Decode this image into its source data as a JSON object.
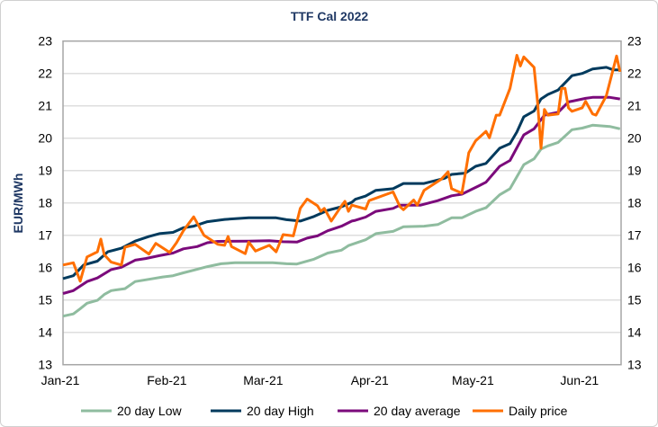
{
  "chart_data": {
    "type": "line",
    "title": "TTF Cal 2022",
    "ylabel": "EUR/MWh",
    "xlabel": "",
    "ylim": [
      13,
      23
    ],
    "yticks": [
      13,
      14,
      15,
      16,
      17,
      18,
      19,
      20,
      21,
      22,
      23
    ],
    "secondary_yticks": [
      13,
      14,
      15,
      16,
      17,
      18,
      19,
      20,
      21,
      22,
      23
    ],
    "xticks": [
      {
        "date": "2021-01-01",
        "label": "Jan-21"
      },
      {
        "date": "2021-02-01",
        "label": "Feb-21"
      },
      {
        "date": "2021-03-01",
        "label": "Mar-21"
      },
      {
        "date": "2021-04-01",
        "label": "Apr-21"
      },
      {
        "date": "2021-05-01",
        "label": "May-21"
      },
      {
        "date": "2021-06-01",
        "label": "Jun-21"
      }
    ],
    "grid": true,
    "legend_position": "bottom",
    "series": [
      {
        "name": "20 day Low",
        "color": "#8fbc9f",
        "points": [
          [
            "2021-01-01",
            14.5
          ],
          [
            "2021-01-04",
            14.57
          ],
          [
            "2021-01-06",
            14.73
          ],
          [
            "2021-01-08",
            14.9
          ],
          [
            "2021-01-11",
            14.99
          ],
          [
            "2021-01-13",
            15.17
          ],
          [
            "2021-01-15",
            15.29
          ],
          [
            "2021-01-19",
            15.35
          ],
          [
            "2021-01-22",
            15.57
          ],
          [
            "2021-01-26",
            15.64
          ],
          [
            "2021-01-30",
            15.71
          ],
          [
            "2021-02-02",
            15.75
          ],
          [
            "2021-02-05",
            15.84
          ],
          [
            "2021-02-08",
            15.92
          ],
          [
            "2021-02-12",
            16.03
          ],
          [
            "2021-02-16",
            16.12
          ],
          [
            "2021-02-20",
            16.15
          ],
          [
            "2021-03-03",
            16.15
          ],
          [
            "2021-03-07",
            16.12
          ],
          [
            "2021-03-10",
            16.11
          ],
          [
            "2021-03-15",
            16.26
          ],
          [
            "2021-03-19",
            16.45
          ],
          [
            "2021-03-23",
            16.54
          ],
          [
            "2021-03-25",
            16.68
          ],
          [
            "2021-03-28",
            16.79
          ],
          [
            "2021-03-30",
            16.86
          ],
          [
            "2021-04-02",
            17.05
          ],
          [
            "2021-04-07",
            17.12
          ],
          [
            "2021-04-10",
            17.26
          ],
          [
            "2021-04-16",
            17.28
          ],
          [
            "2021-04-20",
            17.33
          ],
          [
            "2021-04-24",
            17.54
          ],
          [
            "2021-04-27",
            17.54
          ],
          [
            "2021-05-01",
            17.74
          ],
          [
            "2021-05-04",
            17.85
          ],
          [
            "2021-05-08",
            18.25
          ],
          [
            "2021-05-11",
            18.44
          ],
          [
            "2021-05-15",
            19.18
          ],
          [
            "2021-05-18",
            19.36
          ],
          [
            "2021-05-20",
            19.66
          ],
          [
            "2021-05-22",
            19.76
          ],
          [
            "2021-05-25",
            19.87
          ],
          [
            "2021-05-29",
            20.26
          ],
          [
            "2021-06-01",
            20.31
          ],
          [
            "2021-06-04",
            20.4
          ],
          [
            "2021-06-09",
            20.36
          ],
          [
            "2021-06-12",
            20.29
          ]
        ]
      },
      {
        "name": "20 day High",
        "color": "#003a5d",
        "points": [
          [
            "2021-01-01",
            15.66
          ],
          [
            "2021-01-04",
            15.75
          ],
          [
            "2021-01-07",
            16.08
          ],
          [
            "2021-01-11",
            16.2
          ],
          [
            "2021-01-14",
            16.49
          ],
          [
            "2021-01-18",
            16.6
          ],
          [
            "2021-01-22",
            16.82
          ],
          [
            "2021-01-26",
            16.96
          ],
          [
            "2021-01-29",
            17.05
          ],
          [
            "2021-02-02",
            17.09
          ],
          [
            "2021-02-05",
            17.23
          ],
          [
            "2021-02-08",
            17.28
          ],
          [
            "2021-02-12",
            17.42
          ],
          [
            "2021-02-17",
            17.49
          ],
          [
            "2021-02-24",
            17.54
          ],
          [
            "2021-03-04",
            17.54
          ],
          [
            "2021-03-07",
            17.48
          ],
          [
            "2021-03-11",
            17.44
          ],
          [
            "2021-03-15",
            17.58
          ],
          [
            "2021-03-19",
            17.77
          ],
          [
            "2021-03-23",
            17.88
          ],
          [
            "2021-03-26",
            18.02
          ],
          [
            "2021-03-27",
            18.11
          ],
          [
            "2021-03-30",
            18.21
          ],
          [
            "2021-04-02",
            18.39
          ],
          [
            "2021-04-07",
            18.44
          ],
          [
            "2021-04-10",
            18.6
          ],
          [
            "2021-04-16",
            18.6
          ],
          [
            "2021-04-22",
            18.76
          ],
          [
            "2021-04-24",
            18.88
          ],
          [
            "2021-04-28",
            18.92
          ],
          [
            "2021-05-01",
            19.13
          ],
          [
            "2021-05-04",
            19.22
          ],
          [
            "2021-05-08",
            19.69
          ],
          [
            "2021-05-11",
            19.83
          ],
          [
            "2021-05-13",
            20.19
          ],
          [
            "2021-05-15",
            20.66
          ],
          [
            "2021-05-18",
            20.84
          ],
          [
            "2021-05-20",
            21.21
          ],
          [
            "2021-05-22",
            21.35
          ],
          [
            "2021-05-25",
            21.49
          ],
          [
            "2021-05-29",
            21.93
          ],
          [
            "2021-06-01",
            22.0
          ],
          [
            "2021-06-04",
            22.14
          ],
          [
            "2021-06-08",
            22.19
          ],
          [
            "2021-06-10",
            22.11
          ],
          [
            "2021-06-12",
            22.11
          ]
        ]
      },
      {
        "name": "20 day average",
        "color": "#7b0a7b",
        "points": [
          [
            "2021-01-01",
            15.2
          ],
          [
            "2021-01-04",
            15.29
          ],
          [
            "2021-01-08",
            15.57
          ],
          [
            "2021-01-11",
            15.68
          ],
          [
            "2021-01-15",
            15.94
          ],
          [
            "2021-01-18",
            16.01
          ],
          [
            "2021-01-22",
            16.23
          ],
          [
            "2021-01-25",
            16.28
          ],
          [
            "2021-01-29",
            16.37
          ],
          [
            "2021-02-02",
            16.45
          ],
          [
            "2021-02-05",
            16.58
          ],
          [
            "2021-02-09",
            16.65
          ],
          [
            "2021-02-12",
            16.77
          ],
          [
            "2021-02-15",
            16.81
          ],
          [
            "2021-02-24",
            16.82
          ],
          [
            "2021-03-02",
            16.83
          ],
          [
            "2021-03-06",
            16.8
          ],
          [
            "2021-03-10",
            16.79
          ],
          [
            "2021-03-13",
            16.91
          ],
          [
            "2021-03-16",
            16.98
          ],
          [
            "2021-03-19",
            17.14
          ],
          [
            "2021-03-23",
            17.28
          ],
          [
            "2021-03-26",
            17.44
          ],
          [
            "2021-03-27",
            17.46
          ],
          [
            "2021-03-30",
            17.56
          ],
          [
            "2021-04-02",
            17.74
          ],
          [
            "2021-04-07",
            17.83
          ],
          [
            "2021-04-09",
            17.93
          ],
          [
            "2021-04-15",
            17.93
          ],
          [
            "2021-04-20",
            18.07
          ],
          [
            "2021-04-24",
            18.22
          ],
          [
            "2021-04-27",
            18.27
          ],
          [
            "2021-05-02",
            18.53
          ],
          [
            "2021-05-04",
            18.64
          ],
          [
            "2021-05-08",
            19.13
          ],
          [
            "2021-05-11",
            19.31
          ],
          [
            "2021-05-15",
            20.1
          ],
          [
            "2021-05-18",
            20.29
          ],
          [
            "2021-05-21",
            20.71
          ],
          [
            "2021-05-25",
            20.8
          ],
          [
            "2021-05-28",
            21.12
          ],
          [
            "2021-06-02",
            21.23
          ],
          [
            "2021-06-04",
            21.26
          ],
          [
            "2021-06-09",
            21.26
          ],
          [
            "2021-06-12",
            21.21
          ]
        ]
      },
      {
        "name": "Daily price",
        "color": "#ff6f00",
        "points": [
          [
            "2021-01-01",
            16.08
          ],
          [
            "2021-01-04",
            16.15
          ],
          [
            "2021-01-06",
            15.58
          ],
          [
            "2021-01-08",
            16.33
          ],
          [
            "2021-01-11",
            16.49
          ],
          [
            "2021-01-12",
            16.88
          ],
          [
            "2021-01-13",
            16.4
          ],
          [
            "2021-01-15",
            16.17
          ],
          [
            "2021-01-18",
            16.08
          ],
          [
            "2021-01-19",
            16.63
          ],
          [
            "2021-01-22",
            16.72
          ],
          [
            "2021-01-26",
            16.42
          ],
          [
            "2021-01-28",
            16.75
          ],
          [
            "2021-02-01",
            16.47
          ],
          [
            "2021-02-03",
            16.77
          ],
          [
            "2021-02-05",
            17.14
          ],
          [
            "2021-02-08",
            17.57
          ],
          [
            "2021-02-11",
            17.0
          ],
          [
            "2021-02-15",
            16.72
          ],
          [
            "2021-02-17",
            16.69
          ],
          [
            "2021-02-18",
            16.96
          ],
          [
            "2021-02-19",
            16.65
          ],
          [
            "2021-02-23",
            16.43
          ],
          [
            "2021-02-24",
            16.79
          ],
          [
            "2021-02-26",
            16.51
          ],
          [
            "2021-03-02",
            16.69
          ],
          [
            "2021-03-04",
            16.49
          ],
          [
            "2021-03-06",
            17.02
          ],
          [
            "2021-03-09",
            16.98
          ],
          [
            "2021-03-11",
            17.83
          ],
          [
            "2021-03-13",
            18.12
          ],
          [
            "2021-03-16",
            17.91
          ],
          [
            "2021-03-17",
            17.74
          ],
          [
            "2021-03-18",
            17.83
          ],
          [
            "2021-03-20",
            17.44
          ],
          [
            "2021-03-23",
            17.91
          ],
          [
            "2021-03-24",
            18.05
          ],
          [
            "2021-03-25",
            17.74
          ],
          [
            "2021-03-26",
            17.93
          ],
          [
            "2021-03-30",
            17.81
          ],
          [
            "2021-03-31",
            18.07
          ],
          [
            "2021-04-07",
            18.34
          ],
          [
            "2021-04-09",
            17.88
          ],
          [
            "2021-04-10",
            17.79
          ],
          [
            "2021-04-13",
            18.09
          ],
          [
            "2021-04-14",
            17.93
          ],
          [
            "2021-04-16",
            18.39
          ],
          [
            "2021-04-21",
            18.73
          ],
          [
            "2021-04-23",
            18.96
          ],
          [
            "2021-04-24",
            18.44
          ],
          [
            "2021-04-27",
            18.3
          ],
          [
            "2021-04-28",
            18.9
          ],
          [
            "2021-04-29",
            19.55
          ],
          [
            "2021-05-01",
            19.92
          ],
          [
            "2021-05-04",
            20.21
          ],
          [
            "2021-05-05",
            20.01
          ],
          [
            "2021-05-07",
            20.71
          ],
          [
            "2021-05-08",
            20.71
          ],
          [
            "2021-05-11",
            21.54
          ],
          [
            "2021-05-13",
            22.56
          ],
          [
            "2021-05-14",
            22.23
          ],
          [
            "2021-05-15",
            22.51
          ],
          [
            "2021-05-18",
            22.19
          ],
          [
            "2021-05-19",
            21.12
          ],
          [
            "2021-05-20",
            19.69
          ],
          [
            "2021-05-21",
            20.89
          ],
          [
            "2021-05-22",
            20.71
          ],
          [
            "2021-05-25",
            20.75
          ],
          [
            "2021-05-26",
            21.54
          ],
          [
            "2021-05-27",
            21.54
          ],
          [
            "2021-05-28",
            20.94
          ],
          [
            "2021-05-29",
            20.83
          ],
          [
            "2021-06-01",
            20.94
          ],
          [
            "2021-06-02",
            21.14
          ],
          [
            "2021-06-04",
            20.75
          ],
          [
            "2021-06-05",
            20.71
          ],
          [
            "2021-06-08",
            21.31
          ],
          [
            "2021-06-11",
            22.54
          ],
          [
            "2021-06-12",
            22.05
          ]
        ]
      }
    ]
  }
}
